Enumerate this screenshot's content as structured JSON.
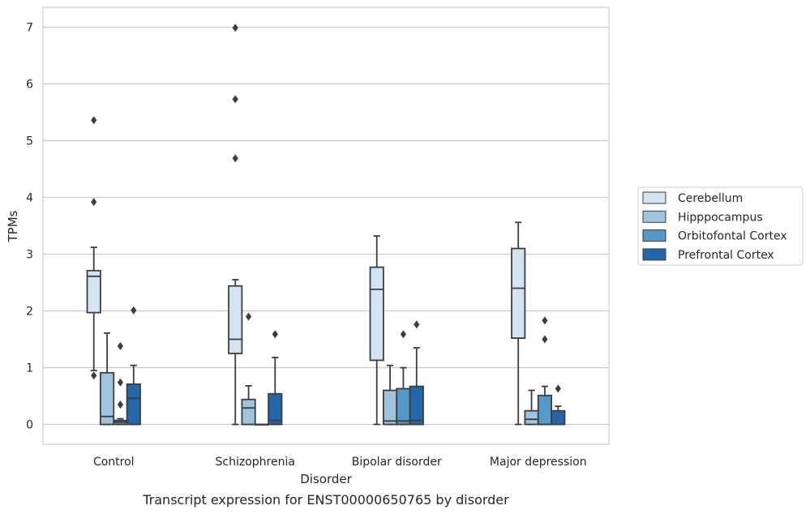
{
  "chart_data": {
    "type": "boxplot",
    "xlabel": "Disorder",
    "ylabel": "TPMs",
    "caption": "Transcript expression for ENST00000650765 by disorder",
    "ylim": [
      -0.35,
      7.35
    ],
    "yticks": [
      "0",
      "1",
      "2",
      "3",
      "4",
      "5",
      "6",
      "7"
    ],
    "grid": "horizontal",
    "legend_position": "right",
    "categories": [
      "Control",
      "Schizophrenia",
      "Bipolar disorder",
      "Major depression"
    ],
    "series": [
      {
        "name": "Cerebellum",
        "color": "#d3e3f1",
        "boxes": [
          {
            "whislo": 0.95,
            "q1": 1.97,
            "med": 2.61,
            "q3": 2.71,
            "whishi": 3.12,
            "fliers": [
              5.36,
              3.92,
              0.86
            ]
          },
          {
            "whislo": 0.0,
            "q1": 1.25,
            "med": 1.5,
            "q3": 2.44,
            "whishi": 2.55,
            "fliers": [
              6.99,
              5.73,
              4.69
            ]
          },
          {
            "whislo": 0.0,
            "q1": 1.13,
            "med": 2.38,
            "q3": 2.77,
            "whishi": 3.32,
            "fliers": []
          },
          {
            "whislo": 0.0,
            "q1": 1.52,
            "med": 2.4,
            "q3": 3.1,
            "whishi": 3.56,
            "fliers": []
          }
        ]
      },
      {
        "name": "Hipppocampus",
        "color": "#9fc4df",
        "boxes": [
          {
            "whislo": 0.0,
            "q1": 0.0,
            "med": 0.14,
            "q3": 0.91,
            "whishi": 1.61,
            "fliers": []
          },
          {
            "whislo": 0.0,
            "q1": 0.0,
            "med": 0.29,
            "q3": 0.44,
            "whishi": 0.68,
            "fliers": [
              1.9
            ]
          },
          {
            "whislo": 0.0,
            "q1": 0.0,
            "med": 0.06,
            "q3": 0.6,
            "whishi": 1.04,
            "fliers": []
          },
          {
            "whislo": 0.0,
            "q1": 0.0,
            "med": 0.09,
            "q3": 0.24,
            "whishi": 0.6,
            "fliers": []
          }
        ]
      },
      {
        "name": "Orbitofontal Cortex",
        "color": "#5698c7",
        "boxes": [
          {
            "whislo": 0.0,
            "q1": 0.0,
            "med": 0.04,
            "q3": 0.07,
            "whishi": 0.1,
            "fliers": [
              1.38,
              0.74,
              0.35
            ]
          },
          {
            "whislo": 0.0,
            "q1": 0.0,
            "med": 0.0,
            "q3": 0.0,
            "whishi": 0.0,
            "fliers": []
          },
          {
            "whislo": 0.0,
            "q1": 0.0,
            "med": 0.06,
            "q3": 0.63,
            "whishi": 1.0,
            "fliers": [
              1.59
            ]
          },
          {
            "whislo": 0.0,
            "q1": 0.0,
            "med": 0.0,
            "q3": 0.51,
            "whishi": 0.67,
            "fliers": [
              1.83,
              1.5
            ]
          }
        ]
      },
      {
        "name": "Prefrontal Cortex",
        "color": "#2566a9",
        "boxes": [
          {
            "whislo": 0.0,
            "q1": 0.0,
            "med": 0.46,
            "q3": 0.71,
            "whishi": 1.04,
            "fliers": [
              2.01
            ]
          },
          {
            "whislo": 0.0,
            "q1": 0.0,
            "med": 0.07,
            "q3": 0.54,
            "whishi": 1.18,
            "fliers": [
              1.59
            ]
          },
          {
            "whislo": 0.0,
            "q1": 0.0,
            "med": 0.07,
            "q3": 0.67,
            "whishi": 1.35,
            "fliers": [
              1.76
            ]
          },
          {
            "whislo": 0.0,
            "q1": 0.0,
            "med": 0.0,
            "q3": 0.24,
            "whishi": 0.32,
            "fliers": [
              0.63
            ]
          }
        ]
      }
    ]
  }
}
